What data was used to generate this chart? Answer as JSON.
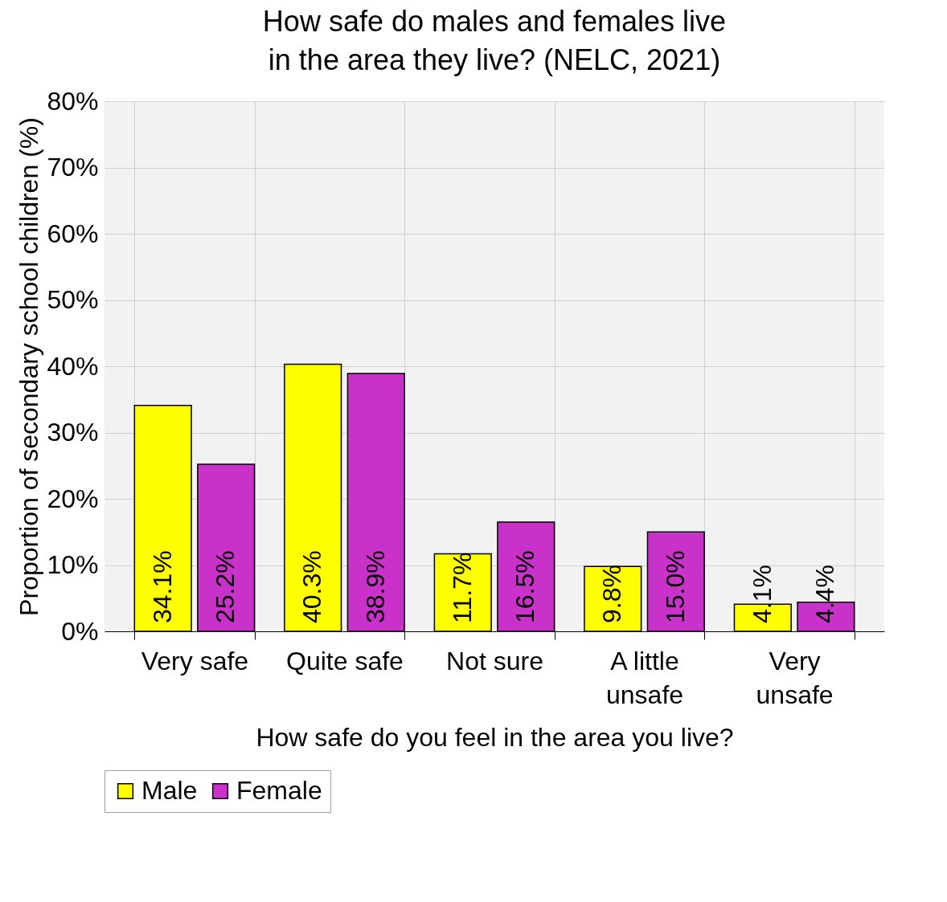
{
  "chart_data": {
    "type": "bar",
    "title": "How safe do males and females live in the area they live? (NELC, 2021)",
    "xlabel": "How safe do you feel in the area you live?",
    "ylabel": "Proportion of secondary school children (%)",
    "categories": [
      "Very safe",
      "Quite safe",
      "Not sure",
      "A little unsafe",
      "Very unsafe"
    ],
    "series": [
      {
        "name": "Male",
        "color": "#ffff00",
        "values": [
          34.1,
          40.3,
          11.7,
          9.8,
          4.1
        ],
        "value_labels": [
          "34.1%",
          "40.3%",
          "11.7%",
          "9.8%",
          "4.1%"
        ]
      },
      {
        "name": "Female",
        "color": "#c832c8",
        "values": [
          25.2,
          38.9,
          16.5,
          15.0,
          4.4
        ],
        "value_labels": [
          "25.2%",
          "38.9%",
          "16.5%",
          "15.0%",
          "4.4%"
        ]
      }
    ],
    "ylim": [
      0,
      80
    ],
    "yticks": [
      {
        "value": 0,
        "label": "0%"
      },
      {
        "value": 10,
        "label": "10%"
      },
      {
        "value": 20,
        "label": "20%"
      },
      {
        "value": 30,
        "label": "30%"
      },
      {
        "value": 40,
        "label": "40%"
      },
      {
        "value": 50,
        "label": "50%"
      },
      {
        "value": 60,
        "label": "60%"
      },
      {
        "value": 70,
        "label": "70%"
      },
      {
        "value": 80,
        "label": "80%"
      }
    ],
    "grid": true,
    "legend": "bottom"
  }
}
